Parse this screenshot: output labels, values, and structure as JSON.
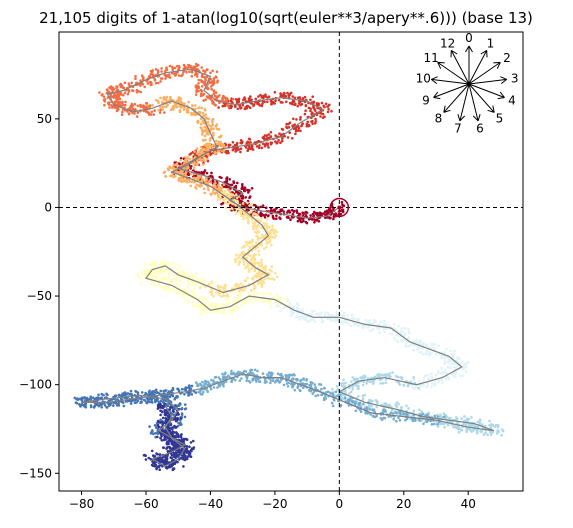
{
  "chart_data": {
    "type": "scatter",
    "title": "21,105 digits of 1-atan(log10(sqrt(euler**3/apery**.6))) (base 13)",
    "xlabel": "",
    "ylabel": "",
    "xlim": [
      -87,
      57
    ],
    "ylim": [
      -160,
      99
    ],
    "x_ticks": [
      -80,
      -60,
      -40,
      -20,
      0,
      20,
      40
    ],
    "y_ticks": [
      -150,
      -100,
      -50,
      0,
      50
    ],
    "grid": false,
    "crosshair": {
      "x": 0,
      "y": 0
    },
    "start_marker": {
      "x": 0,
      "y": 0
    },
    "colormap": [
      "#a50026",
      "#d73027",
      "#f46d43",
      "#fdae61",
      "#fee090",
      "#ffffbf",
      "#e0f3f8",
      "#abd9e9",
      "#74add1",
      "#4575b4",
      "#313695"
    ],
    "path_color": "#808080",
    "path_waypoints": [
      [
        0,
        0
      ],
      [
        -4,
        -5
      ],
      [
        -10,
        -6
      ],
      [
        -17,
        -4
      ],
      [
        -24,
        -2
      ],
      [
        -30,
        0
      ],
      [
        -34,
        4
      ],
      [
        -30,
        8
      ],
      [
        -36,
        14
      ],
      [
        -42,
        18
      ],
      [
        -50,
        22
      ],
      [
        -44,
        28
      ],
      [
        -40,
        32
      ],
      [
        -33,
        34
      ],
      [
        -26,
        36
      ],
      [
        -18,
        40
      ],
      [
        -12,
        48
      ],
      [
        -5,
        55
      ],
      [
        -10,
        60
      ],
      [
        -18,
        62
      ],
      [
        -26,
        60
      ],
      [
        -32,
        58
      ],
      [
        -38,
        60
      ],
      [
        -42,
        66
      ],
      [
        -40,
        74
      ],
      [
        -46,
        78
      ],
      [
        -54,
        76
      ],
      [
        -60,
        72
      ],
      [
        -67,
        66
      ],
      [
        -72,
        64
      ],
      [
        -70,
        58
      ],
      [
        -64,
        54
      ],
      [
        -58,
        56
      ],
      [
        -52,
        60
      ],
      [
        -46,
        56
      ],
      [
        -42,
        50
      ],
      [
        -40,
        42
      ],
      [
        -38,
        34
      ],
      [
        -42,
        30
      ],
      [
        -47,
        24
      ],
      [
        -52,
        20
      ],
      [
        -46,
        16
      ],
      [
        -40,
        12
      ],
      [
        -36,
        7
      ],
      [
        -32,
        2
      ],
      [
        -28,
        -4
      ],
      [
        -24,
        -10
      ],
      [
        -22,
        -16
      ],
      [
        -26,
        -22
      ],
      [
        -30,
        -28
      ],
      [
        -26,
        -34
      ],
      [
        -22,
        -38
      ],
      [
        -28,
        -44
      ],
      [
        -36,
        -48
      ],
      [
        -44,
        -42
      ],
      [
        -50,
        -38
      ],
      [
        -54,
        -33
      ],
      [
        -58,
        -35
      ],
      [
        -60,
        -40
      ],
      [
        -52,
        -44
      ],
      [
        -44,
        -52
      ],
      [
        -40,
        -58
      ],
      [
        -34,
        -56
      ],
      [
        -28,
        -50
      ],
      [
        -20,
        -52
      ],
      [
        -14,
        -58
      ],
      [
        -8,
        -62
      ],
      [
        0,
        -62
      ],
      [
        8,
        -66
      ],
      [
        16,
        -68
      ],
      [
        22,
        -76
      ],
      [
        28,
        -80
      ],
      [
        34,
        -84
      ],
      [
        38,
        -90
      ],
      [
        32,
        -96
      ],
      [
        24,
        -100
      ],
      [
        14,
        -96
      ],
      [
        6,
        -98
      ],
      [
        0,
        -104
      ],
      [
        8,
        -110
      ],
      [
        18,
        -114
      ],
      [
        26,
        -118
      ],
      [
        34,
        -120
      ],
      [
        42,
        -122
      ],
      [
        48,
        -126
      ],
      [
        40,
        -124
      ],
      [
        30,
        -120
      ],
      [
        20,
        -118
      ],
      [
        10,
        -116
      ],
      [
        2,
        -110
      ],
      [
        -6,
        -104
      ],
      [
        -12,
        -100
      ],
      [
        -18,
        -96
      ],
      [
        -24,
        -96
      ],
      [
        -30,
        -94
      ],
      [
        -36,
        -98
      ],
      [
        -42,
        -102
      ],
      [
        -48,
        -104
      ],
      [
        -56,
        -106
      ],
      [
        -64,
        -108
      ],
      [
        -72,
        -110
      ],
      [
        -80,
        -110
      ],
      [
        -72,
        -108
      ],
      [
        -62,
        -106
      ],
      [
        -54,
        -108
      ],
      [
        -50,
        -114
      ],
      [
        -52,
        -120
      ],
      [
        -56,
        -126
      ],
      [
        -52,
        -130
      ],
      [
        -48,
        -134
      ],
      [
        -52,
        -138
      ],
      [
        -58,
        -142
      ],
      [
        -54,
        -146
      ],
      [
        -50,
        -142
      ],
      [
        -48,
        -136
      ],
      [
        -52,
        -130
      ],
      [
        -54,
        -124
      ],
      [
        -52,
        -118
      ],
      [
        -54,
        -112
      ]
    ],
    "legend": "none",
    "direction_rose": {
      "placement": "top-right",
      "labels": [
        "0",
        "1",
        "2",
        "3",
        "4",
        "5",
        "6",
        "7",
        "8",
        "9",
        "10",
        "11",
        "12"
      ]
    }
  }
}
